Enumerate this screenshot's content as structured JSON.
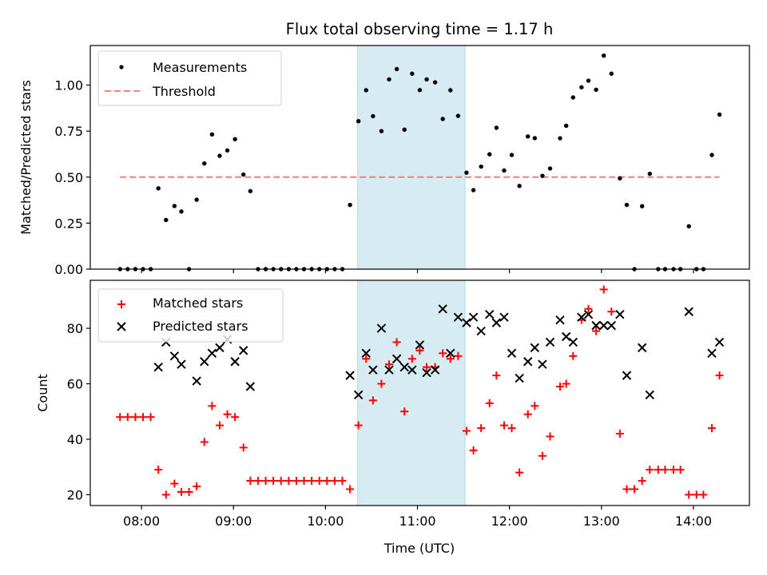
{
  "chart_data": [
    {
      "type": "scatter",
      "panel": "top",
      "title": "Flux total observing time = 1.17 h",
      "xlabel": "",
      "ylabel": "Matched/Predicted stars",
      "xlim": [
        "07:26.6",
        "14:36.5"
      ],
      "ylim": [
        0,
        1.215
      ],
      "yticks": [
        0.0,
        0.25,
        0.5,
        0.75,
        1.0
      ],
      "ytick_labels": [
        "0.00",
        "0.25",
        "0.50",
        "0.75",
        "1.00"
      ],
      "xticks": [
        "08:00",
        "09:00",
        "10:00",
        "11:00",
        "12:00",
        "13:00",
        "14:00"
      ],
      "xtick_labels_visible": false,
      "grid": false,
      "legend": {
        "placement": "top-left",
        "entries": [
          {
            "label": "Measurements",
            "marker": "dot",
            "color": "#000000"
          },
          {
            "label": "Threshold",
            "marker": "dashed-line",
            "color": "#ff8080"
          }
        ]
      },
      "threshold": {
        "value": 0.5,
        "x_from": "07:46",
        "x_to": "14:17",
        "color": "#f08080"
      },
      "shaded_span": {
        "from": "10:21",
        "to": "11:31",
        "color": "#add8e6"
      },
      "series": [
        {
          "name": "Measurements",
          "color": "#000000"
        }
      ]
    },
    {
      "type": "scatter",
      "panel": "bottom",
      "xlabel": "Time (UTC)",
      "ylabel": "Count",
      "xlim": [
        "07:26.6",
        "14:36.5"
      ],
      "ylim": [
        16.1,
        97.3
      ],
      "yticks": [
        20,
        40,
        60,
        80
      ],
      "ytick_labels": [
        "20",
        "40",
        "60",
        "80"
      ],
      "xticks": [
        "08:00",
        "09:00",
        "10:00",
        "11:00",
        "12:00",
        "13:00",
        "14:00"
      ],
      "xtick_labels": [
        "08:00",
        "09:00",
        "10:00",
        "11:00",
        "12:00",
        "13:00",
        "14:00"
      ],
      "grid": false,
      "legend": {
        "placement": "top-left",
        "entries": [
          {
            "label": "Matched stars",
            "marker": "plus",
            "color": "#ff0000"
          },
          {
            "label": "Predicted stars",
            "marker": "x",
            "color": "#000000"
          }
        ]
      },
      "shaded_span": {
        "from": "10:21",
        "to": "11:31",
        "color": "#add8e6"
      },
      "series": [
        {
          "name": "Matched stars",
          "color": "#ff0000",
          "marker": "plus"
        },
        {
          "name": "Predicted stars",
          "color": "#000000",
          "marker": "x"
        }
      ]
    }
  ],
  "observations": {
    "columns": [
      "time_utc",
      "matched",
      "predicted",
      "ratio"
    ],
    "rows": [
      [
        "07:46",
        48,
        null,
        0.0
      ],
      [
        "07:51",
        48,
        null,
        0.0
      ],
      [
        "07:56",
        48,
        null,
        0.0
      ],
      [
        "08:01",
        48,
        null,
        0.0
      ],
      [
        "08:06",
        48,
        null,
        0.0
      ],
      [
        "08:11",
        29,
        66,
        0.439
      ],
      [
        "08:16",
        20,
        75,
        0.267
      ],
      [
        "08:21.5",
        24,
        70,
        0.343
      ],
      [
        "08:26",
        21,
        67,
        0.313
      ],
      [
        "08:31",
        21,
        null,
        0.0
      ],
      [
        "08:36",
        23,
        61,
        0.377
      ],
      [
        "08:41",
        39,
        68,
        0.574
      ],
      [
        "08:46",
        52,
        71,
        0.732
      ],
      [
        "08:51",
        45,
        73,
        0.616
      ],
      [
        "08:56",
        49,
        76,
        0.645
      ],
      [
        "09:01",
        48,
        68,
        0.706
      ],
      [
        "09:06.5",
        37,
        72,
        0.514
      ],
      [
        "09:11",
        25,
        59,
        0.424
      ],
      [
        "09:16",
        25,
        null,
        0.0
      ],
      [
        "09:21",
        25,
        null,
        0.0
      ],
      [
        "09:26",
        25,
        null,
        0.0
      ],
      [
        "09:31",
        25,
        null,
        0.0
      ],
      [
        "09:36",
        25,
        null,
        0.0
      ],
      [
        "09:41",
        25,
        null,
        0.0
      ],
      [
        "09:46",
        25,
        null,
        0.0
      ],
      [
        "09:51",
        25,
        null,
        0.0
      ],
      [
        "09:56",
        25,
        null,
        0.0
      ],
      [
        "10:01",
        25,
        null,
        0.0
      ],
      [
        "10:06",
        25,
        null,
        0.0
      ],
      [
        "10:11",
        25,
        null,
        0.0
      ],
      [
        "10:16",
        22,
        63,
        0.349
      ],
      [
        "10:21.5",
        45,
        56,
        0.804
      ],
      [
        "10:26.5",
        69,
        71,
        0.972
      ],
      [
        "10:31",
        54,
        65,
        0.831
      ],
      [
        "10:36.5",
        60,
        80,
        0.75
      ],
      [
        "10:41.5",
        67,
        65,
        1.031
      ],
      [
        "10:46.5",
        75,
        69,
        1.087
      ],
      [
        "10:51.5",
        50,
        66,
        0.758
      ],
      [
        "10:56.5",
        69,
        65,
        1.062
      ],
      [
        "11:01.5",
        72,
        74,
        0.973
      ],
      [
        "11:06",
        66,
        64,
        1.031
      ],
      [
        "11:11.5",
        66,
        65,
        1.015
      ],
      [
        "11:16.5",
        71,
        87,
        0.816
      ],
      [
        "11:21.5",
        69,
        71,
        0.972
      ],
      [
        "11:26.5",
        70,
        84,
        0.833
      ],
      [
        "11:32",
        43,
        82,
        0.524
      ],
      [
        "11:36.5",
        36,
        84,
        0.429
      ],
      [
        "11:41.5",
        44,
        79,
        0.557
      ],
      [
        "11:47",
        53,
        85,
        0.624
      ],
      [
        "11:51.5",
        63,
        82,
        0.768
      ],
      [
        "11:56.5",
        45,
        84,
        0.536
      ],
      [
        "12:01.5",
        44,
        71,
        0.62
      ],
      [
        "12:06.5",
        28,
        62,
        0.452
      ],
      [
        "12:12",
        49,
        68,
        0.721
      ],
      [
        "12:16.5",
        52,
        73,
        0.712
      ],
      [
        "12:21.5",
        34,
        67,
        0.507
      ],
      [
        "12:26.5",
        41,
        75,
        0.547
      ],
      [
        "12:33",
        59,
        83,
        0.711
      ],
      [
        "12:37",
        60,
        77,
        0.779
      ],
      [
        "12:41.5",
        70,
        75,
        0.933
      ],
      [
        "12:47",
        83,
        84,
        0.988
      ],
      [
        "12:51.5",
        87,
        85,
        1.024
      ],
      [
        "12:56.5",
        79,
        81,
        0.975
      ],
      [
        "13:01.5",
        94,
        81,
        1.16
      ],
      [
        "13:06.5",
        86,
        81,
        1.062
      ],
      [
        "13:12",
        42,
        85,
        0.494
      ],
      [
        "13:16.5",
        22,
        63,
        0.349
      ],
      [
        "13:21.5",
        22,
        null,
        0.0
      ],
      [
        "13:26.5",
        25,
        73,
        0.342
      ],
      [
        "13:31.5",
        29,
        56,
        0.518
      ],
      [
        "13:37",
        29,
        null,
        0.0
      ],
      [
        "13:41.5",
        29,
        null,
        0.0
      ],
      [
        "13:47",
        29,
        null,
        0.0
      ],
      [
        "13:51.5",
        29,
        null,
        0.0
      ],
      [
        "13:57",
        20,
        86,
        0.233
      ],
      [
        "14:02",
        20,
        null,
        0.0
      ],
      [
        "14:06.5",
        20,
        null,
        0.0
      ],
      [
        "14:12",
        44,
        71,
        0.62
      ],
      [
        "14:17",
        63,
        75,
        0.84
      ]
    ]
  }
}
